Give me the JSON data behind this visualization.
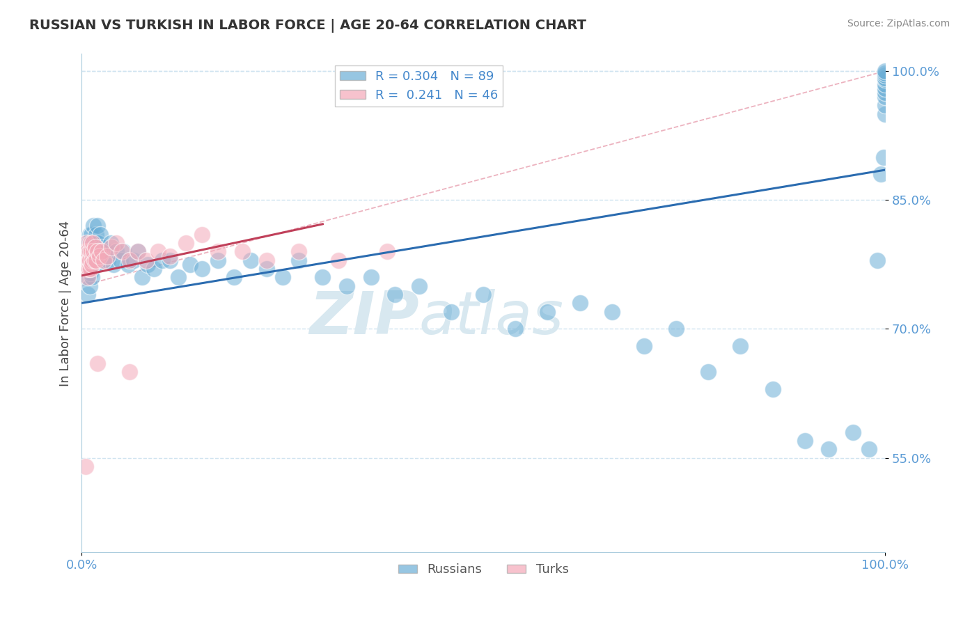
{
  "title": "RUSSIAN VS TURKISH IN LABOR FORCE | AGE 20-64 CORRELATION CHART",
  "source": "Source: ZipAtlas.com",
  "ylabel": "In Labor Force | Age 20-64",
  "watermark": "ZIPatlas",
  "xlim": [
    0.0,
    1.0
  ],
  "ylim": [
    0.44,
    1.02
  ],
  "yticks": [
    0.55,
    0.7,
    0.85,
    1.0
  ],
  "ytick_labels": [
    "55.0%",
    "70.0%",
    "85.0%",
    "100.0%"
  ],
  "xtick_labels": [
    "0.0%",
    "100.0%"
  ],
  "legend_r_russian": "R = 0.304",
  "legend_n_russian": "N = 89",
  "legend_r_turks": "R =  0.241",
  "legend_n_turks": "N = 46",
  "russian_color": "#6baed6",
  "turk_color": "#f4a9b8",
  "russian_line_color": "#2b6cb0",
  "turk_line_color": "#c0405a",
  "grid_color": "#d0e4f0",
  "title_color": "#333333",
  "watermark_color": "#d8e8f0",
  "russians_x": [
    0.005,
    0.006,
    0.007,
    0.008,
    0.008,
    0.009,
    0.009,
    0.01,
    0.01,
    0.01,
    0.011,
    0.011,
    0.012,
    0.012,
    0.013,
    0.013,
    0.014,
    0.015,
    0.015,
    0.016,
    0.016,
    0.017,
    0.018,
    0.018,
    0.019,
    0.02,
    0.021,
    0.022,
    0.023,
    0.025,
    0.027,
    0.03,
    0.033,
    0.036,
    0.04,
    0.043,
    0.048,
    0.052,
    0.058,
    0.065,
    0.07,
    0.075,
    0.082,
    0.09,
    0.1,
    0.11,
    0.12,
    0.135,
    0.15,
    0.17,
    0.19,
    0.21,
    0.23,
    0.25,
    0.27,
    0.3,
    0.33,
    0.36,
    0.39,
    0.42,
    0.46,
    0.5,
    0.54,
    0.58,
    0.62,
    0.66,
    0.7,
    0.74,
    0.78,
    0.82,
    0.86,
    0.9,
    0.93,
    0.96,
    0.98,
    0.99,
    0.995,
    0.998,
    1.0,
    1.0,
    1.0,
    1.0,
    1.0,
    1.0,
    1.0,
    1.0,
    1.0,
    1.0,
    1.0
  ],
  "russians_y": [
    0.78,
    0.76,
    0.775,
    0.79,
    0.74,
    0.8,
    0.77,
    0.81,
    0.78,
    0.75,
    0.795,
    0.765,
    0.81,
    0.78,
    0.8,
    0.76,
    0.79,
    0.82,
    0.78,
    0.8,
    0.775,
    0.79,
    0.81,
    0.775,
    0.8,
    0.82,
    0.8,
    0.79,
    0.81,
    0.795,
    0.78,
    0.79,
    0.78,
    0.8,
    0.775,
    0.79,
    0.78,
    0.79,
    0.775,
    0.78,
    0.79,
    0.76,
    0.775,
    0.77,
    0.78,
    0.78,
    0.76,
    0.775,
    0.77,
    0.78,
    0.76,
    0.78,
    0.77,
    0.76,
    0.78,
    0.76,
    0.75,
    0.76,
    0.74,
    0.75,
    0.72,
    0.74,
    0.7,
    0.72,
    0.73,
    0.72,
    0.68,
    0.7,
    0.65,
    0.68,
    0.63,
    0.57,
    0.56,
    0.58,
    0.56,
    0.78,
    0.88,
    0.9,
    0.95,
    0.96,
    0.97,
    0.975,
    0.98,
    0.985,
    0.99,
    0.992,
    0.995,
    0.998,
    1.0
  ],
  "turks_x": [
    0.003,
    0.004,
    0.005,
    0.006,
    0.006,
    0.007,
    0.008,
    0.008,
    0.009,
    0.009,
    0.01,
    0.01,
    0.011,
    0.011,
    0.012,
    0.013,
    0.013,
    0.014,
    0.015,
    0.016,
    0.017,
    0.018,
    0.02,
    0.022,
    0.025,
    0.028,
    0.032,
    0.037,
    0.043,
    0.05,
    0.06,
    0.07,
    0.08,
    0.095,
    0.11,
    0.13,
    0.15,
    0.17,
    0.2,
    0.23,
    0.27,
    0.32,
    0.38,
    0.02,
    0.06,
    0.005
  ],
  "turks_y": [
    0.78,
    0.775,
    0.79,
    0.8,
    0.77,
    0.78,
    0.79,
    0.76,
    0.78,
    0.77,
    0.79,
    0.78,
    0.8,
    0.77,
    0.79,
    0.78,
    0.775,
    0.8,
    0.79,
    0.78,
    0.795,
    0.78,
    0.79,
    0.785,
    0.79,
    0.78,
    0.785,
    0.795,
    0.8,
    0.79,
    0.78,
    0.79,
    0.78,
    0.79,
    0.785,
    0.8,
    0.81,
    0.79,
    0.79,
    0.78,
    0.79,
    0.78,
    0.79,
    0.66,
    0.65,
    0.54
  ],
  "ref_line_x": [
    0.0,
    1.0
  ],
  "ref_line_y": [
    0.75,
    1.0
  ]
}
